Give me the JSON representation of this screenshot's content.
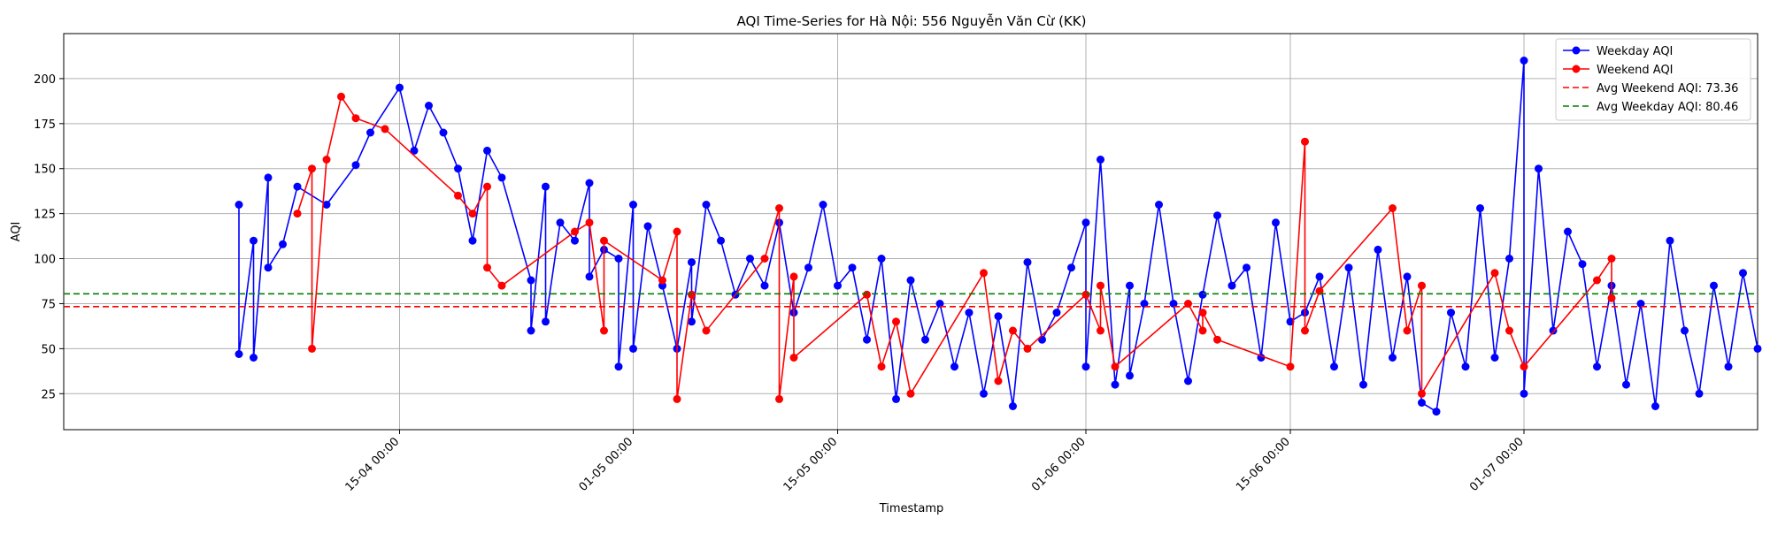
{
  "chart_data": {
    "type": "line",
    "title": "AQI Time-Series for Hà Nội: 556 Nguyễn Văn Cừ (KK)",
    "xlabel": "Timestamp",
    "ylabel": "AQI",
    "xlim": [
      "2024-03-23",
      "2024-07-17"
    ],
    "ylim": [
      5,
      225
    ],
    "grid": true,
    "legend_position": "top-right",
    "x_ticks": [
      {
        "date": "2024-04-15",
        "label": "15-04 00:00"
      },
      {
        "date": "2024-05-01",
        "label": "01-05 00:00"
      },
      {
        "date": "2024-05-15",
        "label": "15-05 00:00"
      },
      {
        "date": "2024-06-01",
        "label": "01-06 00:00"
      },
      {
        "date": "2024-06-15",
        "label": "15-06 00:00"
      },
      {
        "date": "2024-07-01",
        "label": "01-07 00:00"
      }
    ],
    "y_ticks": [
      25,
      50,
      75,
      100,
      125,
      150,
      175,
      200
    ],
    "series": [
      {
        "name": "Weekday AQI",
        "color": "#0000ff",
        "points": [
          [
            "2024-04-04",
            130
          ],
          [
            "2024-04-04",
            47
          ],
          [
            "2024-04-05",
            110
          ],
          [
            "2024-04-05",
            45
          ],
          [
            "2024-04-06",
            145
          ],
          [
            "2024-04-06",
            95
          ],
          [
            "2024-04-07",
            108
          ],
          [
            "2024-04-08",
            140
          ],
          [
            "2024-04-10",
            130
          ],
          [
            "2024-04-12",
            152
          ],
          [
            "2024-04-13",
            170
          ],
          [
            "2024-04-15",
            195
          ],
          [
            "2024-04-16",
            160
          ],
          [
            "2024-04-17",
            185
          ],
          [
            "2024-04-18",
            170
          ],
          [
            "2024-04-19",
            150
          ],
          [
            "2024-04-20",
            110
          ],
          [
            "2024-04-21",
            160
          ],
          [
            "2024-04-22",
            145
          ],
          [
            "2024-04-24",
            88
          ],
          [
            "2024-04-24",
            60
          ],
          [
            "2024-04-25",
            140
          ],
          [
            "2024-04-25",
            65
          ],
          [
            "2024-04-26",
            120
          ],
          [
            "2024-04-27",
            110
          ],
          [
            "2024-04-28",
            142
          ],
          [
            "2024-04-28",
            90
          ],
          [
            "2024-04-29",
            105
          ],
          [
            "2024-04-30",
            100
          ],
          [
            "2024-04-30",
            40
          ],
          [
            "2024-05-01",
            130
          ],
          [
            "2024-05-01",
            50
          ],
          [
            "2024-05-02",
            118
          ],
          [
            "2024-05-03",
            85
          ],
          [
            "2024-05-04",
            50
          ],
          [
            "2024-05-05",
            98
          ],
          [
            "2024-05-05",
            65
          ],
          [
            "2024-05-06",
            130
          ],
          [
            "2024-05-07",
            110
          ],
          [
            "2024-05-08",
            80
          ],
          [
            "2024-05-09",
            100
          ],
          [
            "2024-05-10",
            85
          ],
          [
            "2024-05-11",
            120
          ],
          [
            "2024-05-12",
            70
          ],
          [
            "2024-05-13",
            95
          ],
          [
            "2024-05-14",
            130
          ],
          [
            "2024-05-15",
            85
          ],
          [
            "2024-05-16",
            95
          ],
          [
            "2024-05-17",
            55
          ],
          [
            "2024-05-18",
            100
          ],
          [
            "2024-05-19",
            22
          ],
          [
            "2024-05-20",
            88
          ],
          [
            "2024-05-21",
            55
          ],
          [
            "2024-05-22",
            75
          ],
          [
            "2024-05-23",
            40
          ],
          [
            "2024-05-24",
            70
          ],
          [
            "2024-05-25",
            25
          ],
          [
            "2024-05-26",
            68
          ],
          [
            "2024-05-27",
            18
          ],
          [
            "2024-05-28",
            98
          ],
          [
            "2024-05-29",
            55
          ],
          [
            "2024-05-30",
            70
          ],
          [
            "2024-05-31",
            95
          ],
          [
            "2024-06-01",
            120
          ],
          [
            "2024-06-01",
            40
          ],
          [
            "2024-06-02",
            155
          ],
          [
            "2024-06-03",
            30
          ],
          [
            "2024-06-04",
            85
          ],
          [
            "2024-06-04",
            35
          ],
          [
            "2024-06-05",
            75
          ],
          [
            "2024-06-06",
            130
          ],
          [
            "2024-06-07",
            75
          ],
          [
            "2024-06-08",
            32
          ],
          [
            "2024-06-09",
            80
          ],
          [
            "2024-06-10",
            124
          ],
          [
            "2024-06-11",
            85
          ],
          [
            "2024-06-12",
            95
          ],
          [
            "2024-06-13",
            45
          ],
          [
            "2024-06-14",
            120
          ],
          [
            "2024-06-15",
            65
          ],
          [
            "2024-06-16",
            70
          ],
          [
            "2024-06-17",
            90
          ],
          [
            "2024-06-18",
            40
          ],
          [
            "2024-06-19",
            95
          ],
          [
            "2024-06-20",
            30
          ],
          [
            "2024-06-21",
            105
          ],
          [
            "2024-06-22",
            45
          ],
          [
            "2024-06-23",
            90
          ],
          [
            "2024-06-24",
            20
          ],
          [
            "2024-06-25",
            15
          ],
          [
            "2024-06-26",
            70
          ],
          [
            "2024-06-27",
            40
          ],
          [
            "2024-06-28",
            128
          ],
          [
            "2024-06-29",
            45
          ],
          [
            "2024-06-30",
            100
          ],
          [
            "2024-07-01",
            210
          ],
          [
            "2024-07-01",
            25
          ],
          [
            "2024-07-02",
            150
          ],
          [
            "2024-07-03",
            60
          ],
          [
            "2024-07-04",
            115
          ],
          [
            "2024-07-05",
            97
          ],
          [
            "2024-07-06",
            40
          ],
          [
            "2024-07-07",
            85
          ],
          [
            "2024-07-08",
            30
          ],
          [
            "2024-07-09",
            75
          ],
          [
            "2024-07-10",
            18
          ],
          [
            "2024-07-11",
            110
          ],
          [
            "2024-07-12",
            60
          ],
          [
            "2024-07-13",
            25
          ],
          [
            "2024-07-14",
            85
          ],
          [
            "2024-07-15",
            40
          ],
          [
            "2024-07-16",
            92
          ],
          [
            "2024-07-17",
            50
          ]
        ]
      },
      {
        "name": "Weekend AQI",
        "color": "#ff0000",
        "points": [
          [
            "2024-04-08",
            125
          ],
          [
            "2024-04-09",
            150
          ],
          [
            "2024-04-09",
            50
          ],
          [
            "2024-04-10",
            155
          ],
          [
            "2024-04-11",
            190
          ],
          [
            "2024-04-12",
            178
          ],
          [
            "2024-04-14",
            172
          ],
          [
            "2024-04-19",
            135
          ],
          [
            "2024-04-20",
            125
          ],
          [
            "2024-04-21",
            140
          ],
          [
            "2024-04-21",
            95
          ],
          [
            "2024-04-22",
            85
          ],
          [
            "2024-04-27",
            115
          ],
          [
            "2024-04-28",
            120
          ],
          [
            "2024-04-29",
            60
          ],
          [
            "2024-04-29",
            110
          ],
          [
            "2024-05-03",
            88
          ],
          [
            "2024-05-04",
            115
          ],
          [
            "2024-05-04",
            22
          ],
          [
            "2024-05-05",
            80
          ],
          [
            "2024-05-06",
            60
          ],
          [
            "2024-05-10",
            100
          ],
          [
            "2024-05-11",
            128
          ],
          [
            "2024-05-11",
            22
          ],
          [
            "2024-05-12",
            90
          ],
          [
            "2024-05-12",
            45
          ],
          [
            "2024-05-17",
            80
          ],
          [
            "2024-05-18",
            40
          ],
          [
            "2024-05-19",
            65
          ],
          [
            "2024-05-20",
            25
          ],
          [
            "2024-05-25",
            92
          ],
          [
            "2024-05-26",
            32
          ],
          [
            "2024-05-27",
            60
          ],
          [
            "2024-05-28",
            50
          ],
          [
            "2024-06-01",
            80
          ],
          [
            "2024-06-02",
            60
          ],
          [
            "2024-06-02",
            85
          ],
          [
            "2024-06-03",
            40
          ],
          [
            "2024-06-08",
            75
          ],
          [
            "2024-06-09",
            60
          ],
          [
            "2024-06-09",
            70
          ],
          [
            "2024-06-10",
            55
          ],
          [
            "2024-06-15",
            40
          ],
          [
            "2024-06-16",
            165
          ],
          [
            "2024-06-16",
            60
          ],
          [
            "2024-06-17",
            82
          ],
          [
            "2024-06-22",
            128
          ],
          [
            "2024-06-23",
            60
          ],
          [
            "2024-06-24",
            85
          ],
          [
            "2024-06-24",
            25
          ],
          [
            "2024-06-29",
            92
          ],
          [
            "2024-06-30",
            60
          ],
          [
            "2024-07-01",
            40
          ],
          [
            "2024-07-06",
            88
          ],
          [
            "2024-07-07",
            100
          ],
          [
            "2024-07-07",
            78
          ]
        ]
      }
    ],
    "reference_lines": [
      {
        "name": "Avg Weekend AQI: 73.36",
        "value": 73.36,
        "color": "#ff0000",
        "style": "dashed"
      },
      {
        "name": "Avg Weekday AQI: 80.46",
        "value": 80.46,
        "color": "#008000",
        "style": "dashed"
      }
    ]
  }
}
